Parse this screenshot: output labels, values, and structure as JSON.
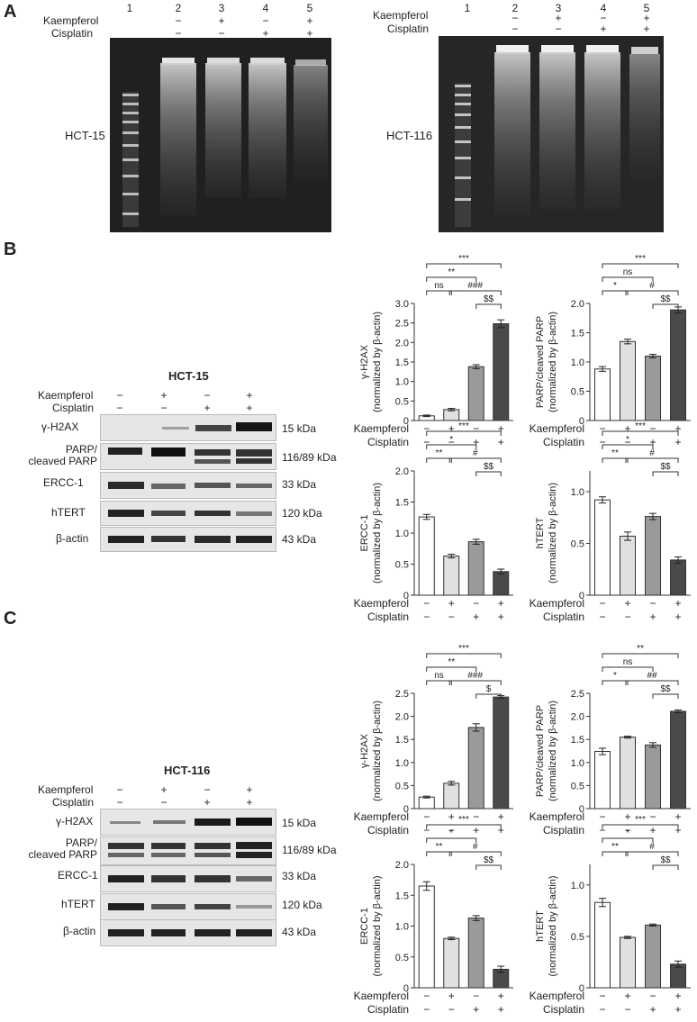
{
  "panelA": {
    "letter": "A",
    "gels": [
      {
        "cell_line": "HCT-15",
        "lane_numbers": [
          "1",
          "2",
          "3",
          "4",
          "5"
        ],
        "kaempferol_label": "Kaempferol",
        "cisplatin_label": "Cisplatin",
        "kaempferol": [
          "−",
          "+",
          "−",
          "+"
        ],
        "cisplatin": [
          "−",
          "−",
          "+",
          "+"
        ]
      },
      {
        "cell_line": "HCT-116",
        "lane_numbers": [
          "1",
          "2",
          "3",
          "4",
          "5"
        ],
        "kaempferol_label": "Kaempferol",
        "cisplatin_label": "Cisplatin",
        "kaempferol": [
          "−",
          "+",
          "−",
          "+"
        ],
        "cisplatin": [
          "−",
          "−",
          "+",
          "+"
        ]
      }
    ]
  },
  "panelB": {
    "letter": "B",
    "blot": {
      "title": "HCT-15",
      "kaempferol_label": "Kaempferol",
      "cisplatin_label": "Cisplatin",
      "kaempferol": [
        "−",
        "+",
        "−",
        "+"
      ],
      "cisplatin": [
        "−",
        "−",
        "+",
        "+"
      ],
      "rows": [
        {
          "label": "γ-H2AX",
          "kda": "15 kDa"
        },
        {
          "label": "PARP/\ncleaved PARP",
          "kda": "116/89 kDa"
        },
        {
          "label": "ERCC-1",
          "kda": "33 kDa"
        },
        {
          "label": "hTERT",
          "kda": "120 kDa"
        },
        {
          "label": "β-actin",
          "kda": "43 kDa"
        }
      ]
    }
  },
  "panelC": {
    "letter": "C",
    "blot": {
      "title": "HCT-116",
      "kaempferol_label": "Kaempferol",
      "cisplatin_label": "Cisplatin",
      "kaempferol": [
        "−",
        "+",
        "−",
        "+"
      ],
      "cisplatin": [
        "−",
        "−",
        "+",
        "+"
      ],
      "rows": [
        {
          "label": "γ-H2AX",
          "kda": "15 kDa"
        },
        {
          "label": "PARP/\ncleaved PARP",
          "kda": "116/89 kDa"
        },
        {
          "label": "ERCC-1",
          "kda": "33 kDa"
        },
        {
          "label": "hTERT",
          "kda": "120 kDa"
        },
        {
          "label": "β-actin",
          "kda": "43 kDa"
        }
      ]
    }
  },
  "chart_data": [
    {
      "type": "bar",
      "panel": "B",
      "ylabel": "γ-H2AX\n(normalized by β-actin)",
      "ylim": [
        0,
        3.0
      ],
      "yticks": [
        "0",
        "0.5",
        "1.0",
        "1.5",
        "2.0",
        "2.5",
        "3.0"
      ],
      "row_labels": [
        "Kaempferol",
        "Cisplatin"
      ],
      "kaempferol": [
        "−",
        "+",
        "−",
        "+"
      ],
      "cisplatin": [
        "−",
        "−",
        "+",
        "+"
      ],
      "values": [
        0.12,
        0.28,
        1.38,
        2.48
      ],
      "errors": [
        0.02,
        0.03,
        0.05,
        0.1
      ],
      "bar_colors": [
        "#ffffff",
        "#e0e0e0",
        "#9a9a9a",
        "#4a4a4a"
      ],
      "annotations": [
        {
          "text": "***"
        },
        {
          "text": "**"
        },
        {
          "text": "ns"
        },
        {
          "text": "###"
        },
        {
          "text": "$$"
        }
      ]
    },
    {
      "type": "bar",
      "panel": "B",
      "ylabel": "PARP/cleaved PARP\n(normalized by β-actin)",
      "ylim": [
        0,
        2.0
      ],
      "yticks": [
        "0",
        "0.5",
        "1.0",
        "1.5",
        "2.0"
      ],
      "row_labels": [
        "Kaempferol",
        "Cisplatin"
      ],
      "kaempferol": [
        "−",
        "+",
        "−",
        "+"
      ],
      "cisplatin": [
        "−",
        "−",
        "+",
        "+"
      ],
      "values": [
        0.88,
        1.35,
        1.1,
        1.89
      ],
      "errors": [
        0.04,
        0.04,
        0.03,
        0.05
      ],
      "bar_colors": [
        "#ffffff",
        "#e0e0e0",
        "#9a9a9a",
        "#4a4a4a"
      ],
      "annotations": [
        {
          "text": "***"
        },
        {
          "text": "ns"
        },
        {
          "text": "*"
        },
        {
          "text": "#"
        },
        {
          "text": "$$"
        }
      ]
    },
    {
      "type": "bar",
      "panel": "B",
      "ylabel": "ERCC-1\n(normalized by β-actin)",
      "ylim": [
        0,
        2.0
      ],
      "yticks": [
        "0",
        "0.5",
        "1.0",
        "1.5",
        "2.0"
      ],
      "row_labels": [
        "Kaempferol",
        "Cisplatin"
      ],
      "kaempferol": [
        "−",
        "+",
        "−",
        "+"
      ],
      "cisplatin": [
        "−",
        "−",
        "+",
        "+"
      ],
      "values": [
        1.26,
        0.63,
        0.86,
        0.38
      ],
      "errors": [
        0.04,
        0.03,
        0.04,
        0.04
      ],
      "bar_colors": [
        "#ffffff",
        "#e0e0e0",
        "#9a9a9a",
        "#4a4a4a"
      ],
      "annotations": [
        {
          "text": "***"
        },
        {
          "text": "*"
        },
        {
          "text": "**"
        },
        {
          "text": "#"
        },
        {
          "text": "$$"
        }
      ]
    },
    {
      "type": "bar",
      "panel": "B",
      "ylabel": "hTERT\n(normalized by β-actin)",
      "ylim": [
        0,
        1.2
      ],
      "yticks": [
        "0",
        "0.5",
        "1.0"
      ],
      "row_labels": [
        "Kaempferol",
        "Cisplatin"
      ],
      "kaempferol": [
        "−",
        "+",
        "−",
        "+"
      ],
      "cisplatin": [
        "−",
        "−",
        "+",
        "+"
      ],
      "values": [
        0.92,
        0.57,
        0.76,
        0.34
      ],
      "errors": [
        0.03,
        0.04,
        0.03,
        0.03
      ],
      "bar_colors": [
        "#ffffff",
        "#e0e0e0",
        "#9a9a9a",
        "#4a4a4a"
      ],
      "annotations": [
        {
          "text": "***"
        },
        {
          "text": "*"
        },
        {
          "text": "**"
        },
        {
          "text": "#"
        },
        {
          "text": "$$"
        }
      ]
    },
    {
      "type": "bar",
      "panel": "C",
      "ylabel": "γ-H2AX\n(normalized by β-actin)",
      "ylim": [
        0,
        2.5
      ],
      "yticks": [
        "0",
        "0.5",
        "1.0",
        "1.5",
        "2.0",
        "2.5"
      ],
      "row_labels": [
        "Kaempferol",
        "Cisplatin"
      ],
      "kaempferol": [
        "−",
        "+",
        "−",
        "+"
      ],
      "cisplatin": [
        "−",
        "−",
        "+",
        "+"
      ],
      "values": [
        0.25,
        0.55,
        1.76,
        2.42
      ],
      "errors": [
        0.02,
        0.04,
        0.08,
        0.03
      ],
      "bar_colors": [
        "#ffffff",
        "#e0e0e0",
        "#9a9a9a",
        "#4a4a4a"
      ],
      "annotations": [
        {
          "text": "***"
        },
        {
          "text": "**"
        },
        {
          "text": "ns"
        },
        {
          "text": "###"
        },
        {
          "text": "$"
        }
      ]
    },
    {
      "type": "bar",
      "panel": "C",
      "ylabel": "PARP/cleaved PARP\n(normalized by β-actin)",
      "ylim": [
        0,
        2.5
      ],
      "yticks": [
        "0",
        "0.5",
        "1.0",
        "1.5",
        "2.0",
        "2.5"
      ],
      "row_labels": [
        "Kaempferol",
        "Cisplatin"
      ],
      "kaempferol": [
        "−",
        "+",
        "−",
        "+"
      ],
      "cisplatin": [
        "−",
        "−",
        "+",
        "+"
      ],
      "values": [
        1.24,
        1.55,
        1.38,
        2.11
      ],
      "errors": [
        0.07,
        0.02,
        0.05,
        0.03
      ],
      "bar_colors": [
        "#ffffff",
        "#e0e0e0",
        "#9a9a9a",
        "#4a4a4a"
      ],
      "annotations": [
        {
          "text": "**"
        },
        {
          "text": "ns"
        },
        {
          "text": "*"
        },
        {
          "text": "##"
        },
        {
          "text": "$$"
        }
      ]
    },
    {
      "type": "bar",
      "panel": "C",
      "ylabel": "ERCC-1\n(normalized by β-actin)",
      "ylim": [
        0,
        2.0
      ],
      "yticks": [
        "0",
        "0.5",
        "1.0",
        "1.5",
        "2.0"
      ],
      "row_labels": [
        "Kaempferol",
        "Cisplatin"
      ],
      "kaempferol": [
        "−",
        "+",
        "−",
        "+"
      ],
      "cisplatin": [
        "−",
        "−",
        "+",
        "+"
      ],
      "values": [
        1.65,
        0.8,
        1.13,
        0.3
      ],
      "errors": [
        0.07,
        0.02,
        0.04,
        0.05
      ],
      "bar_colors": [
        "#ffffff",
        "#e0e0e0",
        "#9a9a9a",
        "#4a4a4a"
      ],
      "annotations": [
        {
          "text": "***"
        },
        {
          "text": "*"
        },
        {
          "text": "**"
        },
        {
          "text": "#"
        },
        {
          "text": "$$"
        }
      ]
    },
    {
      "type": "bar",
      "panel": "C",
      "ylabel": "hTERT\n(normalized by β-actin)",
      "ylim": [
        0,
        1.2
      ],
      "yticks": [
        "0",
        "0.5",
        "1.0"
      ],
      "row_labels": [
        "Kaempferol",
        "Cisplatin"
      ],
      "kaempferol": [
        "−",
        "+",
        "−",
        "+"
      ],
      "cisplatin": [
        "−",
        "−",
        "+",
        "+"
      ],
      "values": [
        0.83,
        0.49,
        0.61,
        0.23
      ],
      "errors": [
        0.04,
        0.01,
        0.01,
        0.03
      ],
      "bar_colors": [
        "#ffffff",
        "#e0e0e0",
        "#9a9a9a",
        "#4a4a4a"
      ],
      "annotations": [
        {
          "text": "***"
        },
        {
          "text": "*"
        },
        {
          "text": "**"
        },
        {
          "text": "#"
        },
        {
          "text": "$$"
        }
      ]
    }
  ]
}
